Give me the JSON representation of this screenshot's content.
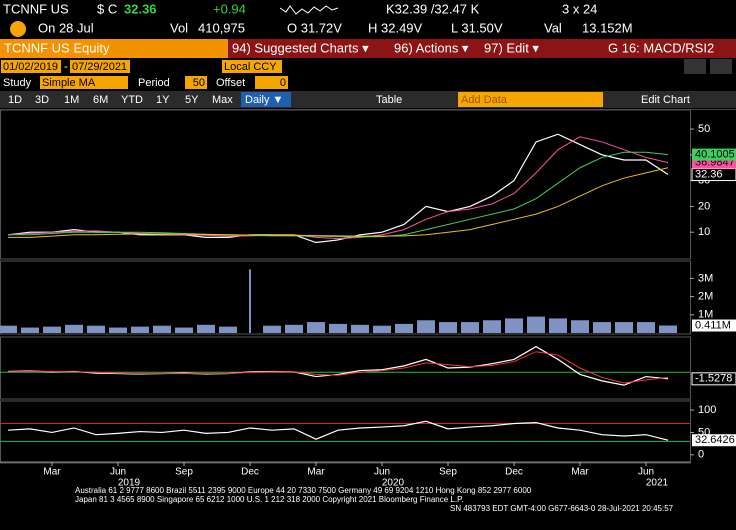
{
  "header": {
    "ticker": "TCNNF US",
    "currency": "$ C",
    "last": "32.36",
    "change": "+0.94",
    "bid_ask": "K32.39 /32.47 K",
    "size": "3 x 24",
    "date": "On 28 Jul",
    "vol_label": "Vol",
    "volume": "410,975",
    "open": "O 31.72V",
    "high": "H 32.49V",
    "low": "L 31.50V",
    "val_label": "Val",
    "value": "13.152M"
  },
  "title_bar": {
    "security": "TCNNF US Equity",
    "menus": [
      "94) Suggested Charts ▾",
      "96) Actions ▾",
      "97) Edit ▾"
    ],
    "template": "G 16: MACD/RSI2"
  },
  "controls": {
    "start": "01/02/2019",
    "sep": "-",
    "end": "07/29/2021",
    "currency": "Local CCY",
    "study_label": "Study",
    "study": "Simple MA",
    "period_label": "Period",
    "period": "50",
    "offset_label": "Offset",
    "offset": "0"
  },
  "toolbar": {
    "ranges": [
      "1D",
      "3D",
      "1M",
      "6M",
      "YTD",
      "1Y",
      "5Y",
      "Max"
    ],
    "frequency": "Daily ▼",
    "table": "Table",
    "add_data": "Add Data",
    "edit_chart": "Edit Chart"
  },
  "footer": [
    "Australia 61 2 9777 8600 Brazil 5511 2395 9000 Europe 44 20 7330 7500 Germany 49 69 9204 1210 Hong Kong 852 2977 6000",
    "Japan 81 3 4565 8900       Singapore 65 6212 1000       U.S. 1 212 318 2000              Copyright 2021 Bloomberg Finance L.P.",
    "SN 483793 EDT  GMT-4:00 G677-6643-0 28-Jul-2021 20:45:57"
  ],
  "chart_data": [
    {
      "type": "line",
      "x": [
        "2019-01",
        "2019-02",
        "2019-03",
        "2019-04",
        "2019-05",
        "2019-06",
        "2019-07",
        "2019-08",
        "2019-09",
        "2019-10",
        "2019-11",
        "2019-12",
        "2020-01",
        "2020-02",
        "2020-03",
        "2020-04",
        "2020-05",
        "2020-06",
        "2020-07",
        "2020-08",
        "2020-09",
        "2020-10",
        "2020-11",
        "2020-12",
        "2021-01",
        "2021-02",
        "2021-03",
        "2021-04",
        "2021-05",
        "2021-06",
        "2021-07"
      ],
      "xticks": [
        {
          "value": "2019-03",
          "label": "Mar"
        },
        {
          "value": "2019-06",
          "label": "Jun"
        },
        {
          "value": "2019-09",
          "label": "Sep"
        },
        {
          "value": "2019-12",
          "label": "Dec"
        },
        {
          "value": "2020-03",
          "label": "Mar"
        },
        {
          "value": "2020-06",
          "label": "Jun"
        },
        {
          "value": "2020-09",
          "label": "Sep"
        },
        {
          "value": "2020-12",
          "label": "Dec"
        },
        {
          "value": "2021-03",
          "label": "Mar"
        },
        {
          "value": "2021-06",
          "label": "Jun"
        }
      ],
      "years": [
        "2019",
        "2020",
        "2021"
      ],
      "ylim": [
        0,
        57
      ],
      "yticks": [
        10,
        20,
        30,
        40,
        50
      ],
      "series": [
        {
          "color": "#ffffff",
          "values": [
            9,
            10,
            10,
            11,
            10,
            10,
            9,
            9,
            9,
            8,
            8,
            9,
            9,
            9,
            6,
            7,
            9,
            10,
            13,
            20,
            18,
            20,
            24,
            30,
            45,
            48,
            44,
            40,
            38,
            38,
            32.36
          ]
        },
        {
          "color": "#ff4fa3",
          "values": [
            9,
            9.5,
            10,
            10.3,
            10.5,
            10,
            9.5,
            9.2,
            9,
            8.8,
            8.5,
            8.6,
            8.8,
            9,
            8,
            7.5,
            8,
            9,
            11,
            15,
            18,
            19,
            21,
            25,
            33,
            42,
            47,
            45,
            42,
            39,
            36.9847
          ]
        },
        {
          "color": "#3fcf5f",
          "values": [
            9,
            9,
            9.5,
            10,
            10,
            10,
            10,
            9.8,
            9.5,
            9.2,
            9,
            8.8,
            8.6,
            8.6,
            8.5,
            8.3,
            8.2,
            8.3,
            9,
            11,
            13,
            15,
            17,
            19,
            23,
            29,
            35,
            39,
            41,
            41,
            40.1005
          ]
        },
        {
          "color": "#e8c020",
          "values": [
            8,
            8,
            8.5,
            9,
            9,
            9.2,
            9.3,
            9.3,
            9.2,
            9.1,
            9,
            8.9,
            8.8,
            8.8,
            8.7,
            8.6,
            8.5,
            8.5,
            8.6,
            9,
            10,
            11,
            13,
            15,
            17,
            20,
            24,
            28,
            31,
            33,
            35
          ]
        }
      ]
    },
    {
      "type": "bar",
      "color": "#7e92c4",
      "ylim": [
        0,
        3900000
      ],
      "yticks": [
        {
          "value": 1000000,
          "label": "1M"
        },
        {
          "value": 2000000,
          "label": "2M"
        },
        {
          "value": 3000000,
          "label": "3M"
        }
      ],
      "values": [
        400000,
        300000,
        350000,
        450000,
        400000,
        300000,
        350000,
        400000,
        300000,
        450000,
        350000,
        3500000,
        400000,
        450000,
        600000,
        500000,
        450000,
        400000,
        500000,
        700000,
        600000,
        600000,
        700000,
        800000,
        900000,
        800000,
        700000,
        600000,
        600000,
        600000,
        410975
      ],
      "value_labels": [
        null,
        null,
        null,
        null,
        null,
        null,
        null,
        null,
        null,
        null,
        null,
        null,
        null,
        null,
        null,
        null,
        null,
        null,
        null,
        null,
        null,
        null,
        null,
        null,
        null,
        null,
        null,
        null,
        null,
        null,
        "0.411M"
      ]
    },
    {
      "type": "line",
      "ylim": [
        -6,
        8
      ],
      "zero_line": true,
      "series": [
        {
          "color": "#ffffff",
          "values": [
            0.2,
            0.3,
            0.1,
            0.2,
            -0.2,
            -0.3,
            -0.4,
            -0.3,
            -0.2,
            -0.4,
            -0.3,
            0.1,
            0.2,
            0.1,
            -1,
            -0.5,
            0.4,
            0.6,
            1.5,
            3,
            1,
            1.2,
            2,
            3,
            6,
            3,
            -0.5,
            -2,
            -3,
            -1,
            -1.5278
          ]
        },
        {
          "color": "#ff3030",
          "values": [
            0.1,
            0.2,
            0.2,
            0.1,
            0,
            -0.2,
            -0.3,
            -0.3,
            -0.3,
            -0.3,
            -0.3,
            0,
            0.1,
            0.1,
            -0.5,
            -0.7,
            0,
            0.4,
            1,
            2.2,
            1.8,
            1.3,
            1.6,
            2.5,
            4.8,
            4,
            1,
            -1.2,
            -2.5,
            -1.8,
            -1.2
          ]
        }
      ]
    },
    {
      "type": "line",
      "ylim": [
        -16,
        118
      ],
      "yticks": [
        0,
        50,
        100
      ],
      "levels": [
        {
          "value": 70,
          "color": "#e02020"
        },
        {
          "value": 30,
          "color": "#20c040"
        }
      ],
      "series": [
        {
          "color": "#ffffff",
          "values": [
            55,
            58,
            50,
            60,
            45,
            48,
            52,
            50,
            55,
            48,
            50,
            60,
            55,
            58,
            35,
            55,
            60,
            62,
            65,
            75,
            58,
            62,
            65,
            70,
            72,
            60,
            55,
            45,
            42,
            45,
            32.6426
          ]
        }
      ]
    }
  ]
}
